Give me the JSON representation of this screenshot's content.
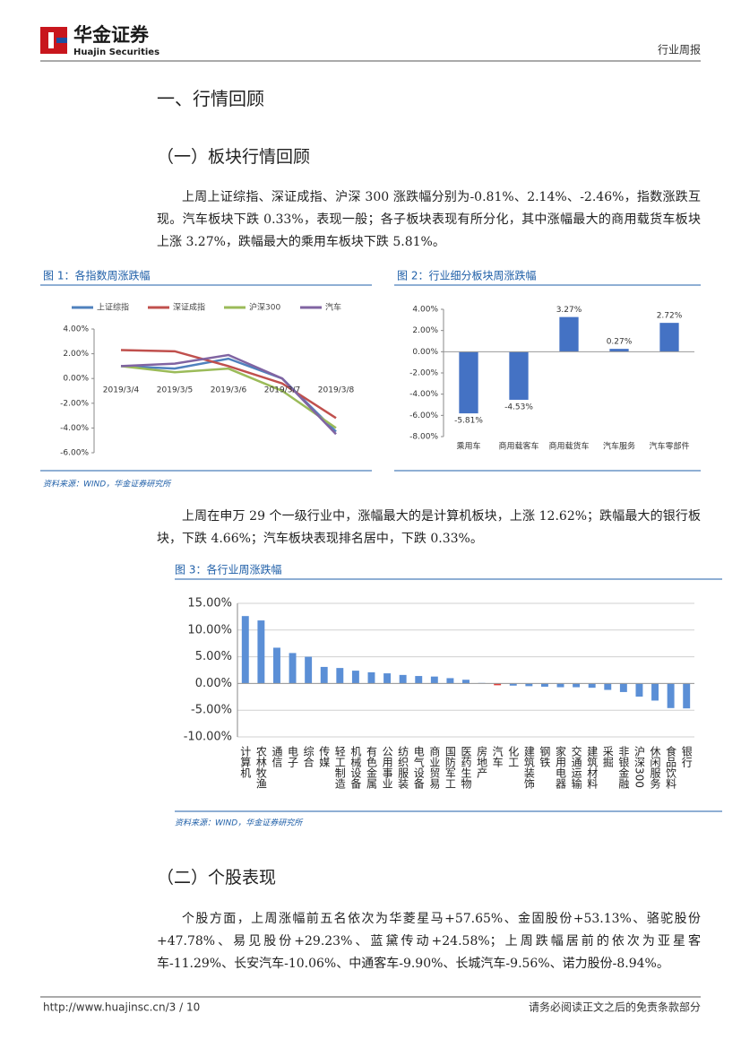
{
  "header": {
    "logo": "华金证券",
    "logo_en": "Huajin Securities",
    "report_type": "行业周报"
  },
  "section_title": "一、行情回顾",
  "subsection_1": "（一）板块行情回顾",
  "paragraph_1": "上周上证综指、深证成指、沪深 300 涨跌幅分别为-0.81%、2.14%、-2.46%，指数涨跌互现。汽车板块下跌 0.33%，表现一般；各子板块表现有所分化，其中涨幅最大的商用载货车板块上涨 3.27%，跌幅最大的乘用车板块下跌 5.81%。",
  "paragraph_2": "上周在申万 29 个一级行业中，涨幅最大的是计算机板块，上涨 12.62%；跌幅最大的银行板块，下跌 4.66%；汽车板块表现排名居中，下跌 0.33%。",
  "subsection_2": "（二）个股表现",
  "paragraph_3": "个股方面，上周涨幅前五名依次为华菱星马+57.65%、金固股份+53.13%、骆驼股份+47.78%、易见股份+29.23%、蓝黛传动+24.58%；上周跌幅居前的依次为亚星客车-11.29%、长安汽车-10.06%、中通客车-9.90%、长城汽车-9.56%、诺力股份-8.94%。",
  "footer": {
    "url": "http://www.huajinsc.cn/3 / 10",
    "disclaimer": "请务必阅读正文之后的免责条款部分"
  },
  "chart_data": [
    {
      "type": "line",
      "title": "图 1：各指数周涨跌幅",
      "source": "资料来源：WIND，华金证券研究所",
      "categories": [
        "2019/3/4",
        "2019/3/5",
        "2019/3/6",
        "2019/3/7",
        "2019/3/8"
      ],
      "series": [
        {
          "name": "上证综指",
          "color": "#4f81bd",
          "values": [
            1.0,
            0.8,
            1.6,
            0.0,
            -4.3
          ]
        },
        {
          "name": "深证成指",
          "color": "#c0504d",
          "values": [
            2.3,
            2.2,
            1.0,
            -0.4,
            -3.2
          ]
        },
        {
          "name": "沪深300",
          "color": "#9bbb59",
          "values": [
            1.0,
            0.5,
            0.8,
            -1.0,
            -4.0
          ]
        },
        {
          "name": "汽车",
          "color": "#8064a2",
          "values": [
            1.0,
            1.2,
            1.9,
            0.0,
            -4.5
          ]
        }
      ],
      "ylim": [
        -6,
        4
      ],
      "yticks": [
        {
          "value": -6,
          "label": "-6.00%"
        },
        {
          "value": -4,
          "label": "-4.00%"
        },
        {
          "value": -2,
          "label": "-2.00%"
        },
        {
          "value": 0,
          "label": "0.00%"
        },
        {
          "value": 2,
          "label": "2.00%"
        },
        {
          "value": 4,
          "label": "4.00%"
        }
      ],
      "legend": "top"
    },
    {
      "type": "bar",
      "title": "图 2：行业细分板块周涨跌幅",
      "categories": [
        "乘用车",
        "商用载客车",
        "商用载货车",
        "汽车服务",
        "汽车零部件"
      ],
      "values": [
        -5.81,
        -4.53,
        3.27,
        0.27,
        2.72
      ],
      "value_labels": [
        "-5.81%",
        "-4.53%",
        "3.27%",
        "0.27%",
        "2.72%"
      ],
      "color": "#4472c4",
      "ylim": [
        -8,
        4
      ],
      "yticks": [
        {
          "value": -8,
          "label": "-8.00%"
        },
        {
          "value": -6,
          "label": "-6.00%"
        },
        {
          "value": -4,
          "label": "-4.00%"
        },
        {
          "value": -2,
          "label": "-2.00%"
        },
        {
          "value": 0,
          "label": "0.00%"
        },
        {
          "value": 2,
          "label": "2.00%"
        },
        {
          "value": 4,
          "label": "4.00%"
        }
      ]
    },
    {
      "type": "bar",
      "title": "图 3：各行业周涨跌幅",
      "source": "资料来源：WIND，华金证券研究所",
      "categories": [
        "计算机",
        "农林牧渔",
        "通信",
        "电子",
        "综合",
        "传媒",
        "轻工制造",
        "机械设备",
        "有色金属",
        "公用事业",
        "纺织服装",
        "电气设备",
        "商业贸易",
        "国防军工",
        "医药生物",
        "房地产",
        "汽车",
        "化工",
        "建筑装饰",
        "钢铁",
        "家用电器",
        "交通运输",
        "建筑材料",
        "采掘",
        "非银金融",
        "沪深300",
        "休闲服务",
        "食品饮料",
        "银行"
      ],
      "values": [
        12.62,
        11.8,
        6.7,
        5.7,
        5.0,
        3.1,
        2.9,
        2.4,
        2.1,
        1.9,
        1.6,
        1.4,
        1.3,
        1.0,
        0.7,
        0.1,
        -0.33,
        -0.4,
        -0.5,
        -0.6,
        -0.7,
        -0.7,
        -0.8,
        -1.2,
        -1.6,
        -2.46,
        -3.2,
        -4.6,
        -4.66
      ],
      "colors": [
        "#5b8fd6",
        "#5b8fd6",
        "#5b8fd6",
        "#5b8fd6",
        "#5b8fd6",
        "#5b8fd6",
        "#5b8fd6",
        "#5b8fd6",
        "#5b8fd6",
        "#5b8fd6",
        "#5b8fd6",
        "#5b8fd6",
        "#5b8fd6",
        "#5b8fd6",
        "#5b8fd6",
        "#5b8fd6",
        "#e0403a",
        "#5b8fd6",
        "#5b8fd6",
        "#5b8fd6",
        "#5b8fd6",
        "#5b8fd6",
        "#5b8fd6",
        "#5b8fd6",
        "#5b8fd6",
        "#5b8fd6",
        "#5b8fd6",
        "#5b8fd6",
        "#5b8fd6"
      ],
      "ylim": [
        -10,
        15
      ],
      "yticks": [
        {
          "value": -10,
          "label": "-10.00%"
        },
        {
          "value": -5,
          "label": "-5.00%"
        },
        {
          "value": 0,
          "label": "0.00%"
        },
        {
          "value": 5,
          "label": "5.00%"
        },
        {
          "value": 10,
          "label": "10.00%"
        },
        {
          "value": 15,
          "label": "15.00%"
        }
      ],
      "grid": true
    }
  ]
}
